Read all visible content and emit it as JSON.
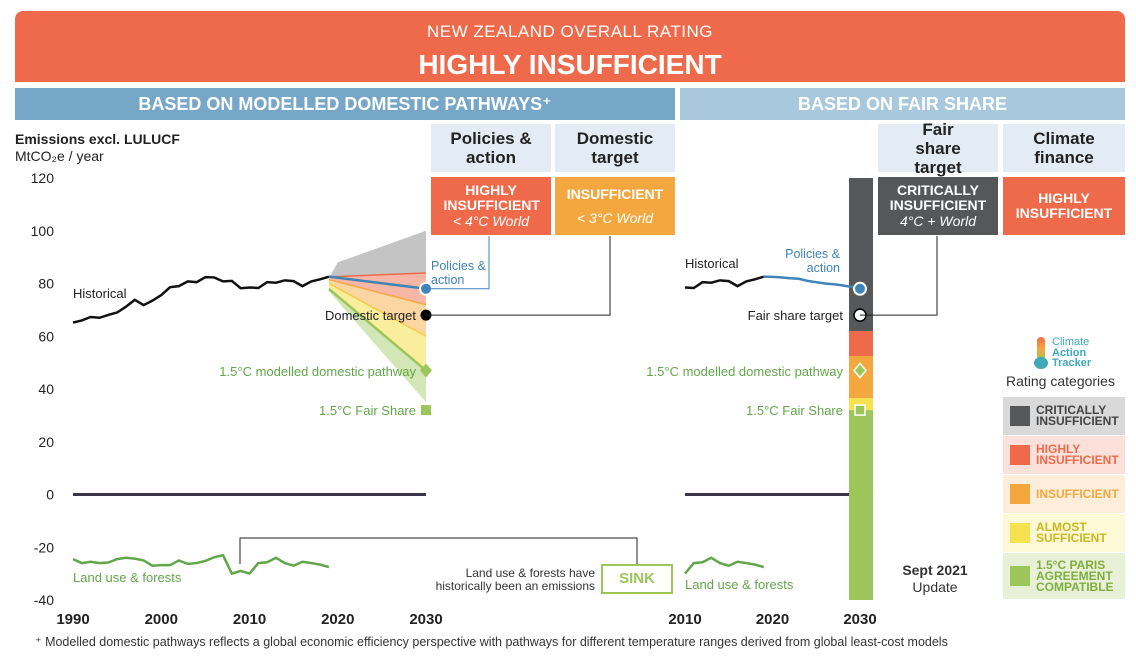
{
  "header": {
    "subtitle": "NEW ZEALAND OVERALL RATING",
    "title": "HIGHLY INSUFFICIENT"
  },
  "sections": {
    "left": "BASED ON MODELLED DOMESTIC PATHWAYS⁺",
    "right": "BASED ON FAIR SHARE"
  },
  "columns": {
    "policies": {
      "title": "Policies & action",
      "rating": "HIGHLY INSUFFICIENT",
      "world": "< 4°C World"
    },
    "domestic": {
      "title": "Domestic target",
      "rating": "INSUFFICIENT",
      "world": "< 3°C World"
    },
    "fairshare": {
      "title": "Fair share target",
      "rating": "CRITICALLY INSUFFICIENT",
      "world": "4°C + World"
    },
    "finance": {
      "title": "Climate finance",
      "rating": "HIGHLY INSUFFICIENT"
    }
  },
  "axis": {
    "title": "Emissions excl. LULUCF",
    "unit": "MtCO₂e / year"
  },
  "annotations": {
    "historical": "Historical",
    "policies_action": "Policies & action",
    "domestic_target": "Domestic target",
    "modelled_pathway": "1.5°C modelled domestic pathway",
    "fair_share_15": "1.5°C Fair Share",
    "fair_share_target": "Fair share target",
    "land_use": "Land use & forests",
    "sink_note": "Land use & forests have historically been an emissions",
    "sink": "SINK",
    "update_date": "Sept 2021",
    "update_word": "Update"
  },
  "brand": {
    "line1": "Climate",
    "line2": "Action",
    "line3": "Tracker"
  },
  "legend": {
    "title": "Rating categories",
    "items": [
      {
        "label": "CRITICALLY INSUFFICIENT",
        "color": "#555759",
        "bg": "#d9d9d9"
      },
      {
        "label": "HIGHLY INSUFFICIENT",
        "color": "#ee6a4b",
        "bg": "#fbe1da"
      },
      {
        "label": "INSUFFICIENT",
        "color": "#f4a73e",
        "bg": "#fdeedb"
      },
      {
        "label": "ALMOST SUFFICIENT",
        "color": "#f6e24f",
        "bg": "#fdf8d6"
      },
      {
        "label": "1.5°C PARIS AGREEMENT COMPATIBLE",
        "color": "#9cc55a",
        "bg": "#e8f1d8"
      }
    ]
  },
  "footnote": "⁺  Modelled domestic pathways reflects a global economic efficiency perspective with pathways for different temperature ranges derived from global least-cost models",
  "colors": {
    "banner": "#ee6a4b",
    "left_section": "#76a7c9",
    "right_section": "#a8c8de",
    "historical": "#111111",
    "policies_line": "#3f84b8",
    "land_use": "#62a64a",
    "critically": "#555759",
    "highly": "#ee6a4b",
    "insufficient": "#f4a73e",
    "almost": "#f6e24f",
    "compatible": "#9cc55a"
  },
  "chart_data": [
    {
      "type": "line",
      "panel": "modelled domestic pathways",
      "xlim": [
        1990,
        2030
      ],
      "ylim": [
        -40,
        120
      ],
      "x_ticks": [
        1990,
        2000,
        2010,
        2020,
        2030
      ],
      "y_ticks": [
        120,
        100,
        80,
        60,
        40,
        20,
        0,
        -20,
        -40
      ],
      "series": [
        {
          "name": "Historical",
          "x": [
            1990,
            1991,
            1992,
            1993,
            1994,
            1995,
            1996,
            1997,
            1998,
            1999,
            2000,
            2001,
            2002,
            2003,
            2004,
            2005,
            2006,
            2007,
            2008,
            2009,
            2010,
            2011,
            2012,
            2013,
            2014,
            2015,
            2016,
            2017,
            2018,
            2019
          ],
          "y": [
            65.2,
            66,
            67.3,
            67,
            68.1,
            69,
            71.2,
            73.8,
            71.8,
            73.5,
            75.6,
            78.6,
            79,
            80.8,
            80.5,
            82.4,
            82.3,
            80.8,
            81,
            78.2,
            78.5,
            78.3,
            80.5,
            80.3,
            81.2,
            80.9,
            79,
            80.8,
            81.6,
            82.6
          ]
        },
        {
          "name": "Land use & forests",
          "x": [
            1990,
            1991,
            1992,
            1993,
            1994,
            1995,
            1996,
            1997,
            1998,
            1999,
            2000,
            2001,
            2002,
            2003,
            2004,
            2005,
            2006,
            2007,
            2008,
            2009,
            2010,
            2011,
            2012,
            2013,
            2014,
            2015,
            2016,
            2017,
            2018,
            2019
          ],
          "y": [
            -24.5,
            -26,
            -25.5,
            -26,
            -25.8,
            -24.5,
            -24,
            -24.3,
            -25,
            -27,
            -26.8,
            -26.8,
            -25,
            -26.3,
            -26,
            -25.2,
            -23.8,
            -23,
            -30,
            -29,
            -30,
            -26,
            -25.7,
            -24,
            -26,
            -27,
            -25.5,
            -26,
            -26.6,
            -27.5
          ]
        },
        {
          "name": "Policies & action",
          "x": [
            2019,
            2030
          ],
          "y": [
            82.6,
            78
          ]
        },
        {
          "name": "Domestic target",
          "x": [
            2030
          ],
          "y": [
            68
          ]
        },
        {
          "name": "1.5°C modelled domestic pathway",
          "x": [
            2019,
            2030
          ],
          "y": [
            78,
            47
          ]
        },
        {
          "name": "1.5°C Fair Share",
          "x": [
            2030
          ],
          "y": [
            32
          ]
        }
      ],
      "bands_2030": {
        "critically": [
          84,
          100
        ],
        "highly": [
          72,
          84
        ],
        "insufficient": [
          60,
          72
        ],
        "almost": [
          47,
          60
        ],
        "compatible": [
          35,
          47
        ]
      }
    },
    {
      "type": "line",
      "panel": "fair share",
      "xlim": [
        2010,
        2030
      ],
      "ylim": [
        -40,
        120
      ],
      "x_ticks": [
        2010,
        2020,
        2030
      ],
      "series": [
        {
          "name": "Historical",
          "x": [
            2010,
            2011,
            2012,
            2013,
            2014,
            2015,
            2016,
            2017,
            2018,
            2019
          ],
          "y": [
            78.5,
            78.3,
            80.5,
            80.3,
            81.2,
            80.9,
            79,
            80.8,
            81.6,
            82.6
          ]
        },
        {
          "name": "Land use & forests",
          "x": [
            2010,
            2011,
            2012,
            2013,
            2014,
            2015,
            2016,
            2017,
            2018,
            2019
          ],
          "y": [
            -30,
            -26,
            -25.7,
            -24,
            -26,
            -27,
            -25.5,
            -26,
            -26.6,
            -27.5
          ]
        },
        {
          "name": "Policies & action",
          "x": [
            2019,
            2020,
            2021,
            2022,
            2023,
            2024,
            2025,
            2026,
            2027,
            2028,
            2029,
            2030
          ],
          "y": [
            82.6,
            82.5,
            82.3,
            82,
            81.8,
            81,
            80.5,
            80,
            79.7,
            79.3,
            78.7,
            78
          ]
        },
        {
          "name": "Fair share target",
          "x": [
            2030
          ],
          "y": [
            68
          ]
        },
        {
          "name": "1.5°C modelled domestic pathway",
          "x": [
            2030
          ],
          "y": [
            47
          ]
        },
        {
          "name": "1.5°C Fair Share",
          "x": [
            2030
          ],
          "y": [
            32
          ]
        }
      ],
      "rating_bar": {
        "critically": [
          62,
          120
        ],
        "highly": [
          52.5,
          62
        ],
        "insufficient": [
          36.5,
          52.5
        ],
        "almost": [
          32,
          36.5
        ],
        "compatible": [
          -40,
          32
        ]
      }
    }
  ]
}
